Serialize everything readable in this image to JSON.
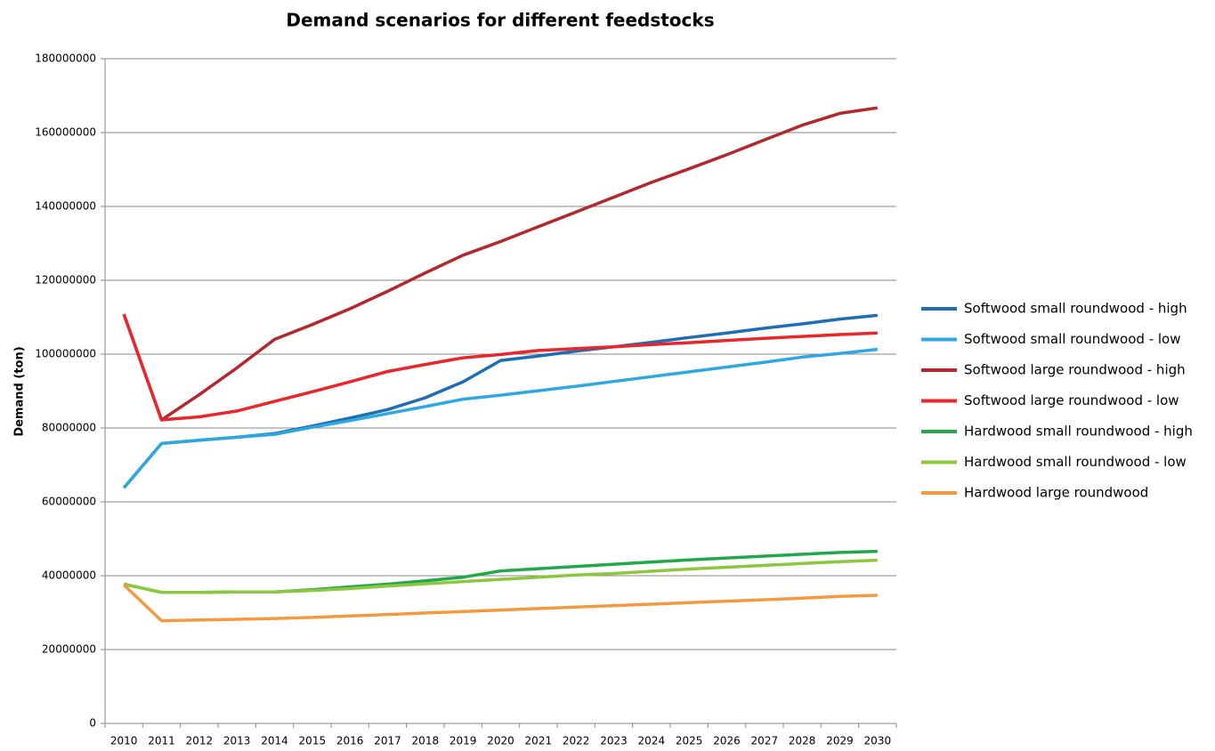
{
  "chart_data": {
    "type": "line",
    "title": "Demand scenarios for different feedstocks",
    "y_label": "Demand (ton)",
    "categories": [
      "2010",
      "2011",
      "2012",
      "2013",
      "2014",
      "2015",
      "2016",
      "2017",
      "2018",
      "2019",
      "2020",
      "2021",
      "2022",
      "2023",
      "2024",
      "2025",
      "2026",
      "2027",
      "2028",
      "2029",
      "2030"
    ],
    "ylim": [
      0,
      180000000
    ],
    "yticks": [
      0,
      20000000,
      40000000,
      60000000,
      80000000,
      100000000,
      120000000,
      140000000,
      160000000,
      180000000
    ],
    "grid": true,
    "legend": "right",
    "series": [
      {
        "name": "Softwood small roundwood - high",
        "color": "#1f6db4",
        "values": [
          63800000,
          75800000,
          76700000,
          77500000,
          78500000,
          80500000,
          82700000,
          85000000,
          88200000,
          92500000,
          98300000,
          99500000,
          100800000,
          102000000,
          103200000,
          104500000,
          105700000,
          107000000,
          108200000,
          109500000,
          110500000
        ]
      },
      {
        "name": "Softwood small roundwood - low",
        "color": "#2fa8e0",
        "values": [
          63800000,
          75800000,
          76700000,
          77500000,
          78300000,
          80200000,
          82000000,
          83900000,
          85800000,
          87800000,
          88900000,
          90100000,
          91300000,
          92600000,
          93900000,
          95200000,
          96500000,
          97800000,
          99200000,
          100200000,
          101300000
        ]
      },
      {
        "name": "Softwood large roundwood - high",
        "color": "#b3282d",
        "values": [
          110800000,
          82200000,
          89000000,
          96300000,
          104000000,
          108000000,
          112300000,
          117000000,
          122000000,
          126800000,
          130500000,
          134500000,
          138500000,
          142500000,
          146500000,
          150200000,
          154000000,
          158000000,
          162000000,
          165200000,
          166700000
        ]
      },
      {
        "name": "Softwood large roundwood - low",
        "color": "#e8262c",
        "values": [
          110800000,
          82200000,
          83000000,
          84600000,
          87200000,
          89800000,
          92500000,
          95300000,
          97200000,
          99000000,
          99900000,
          101000000,
          101500000,
          102000000,
          102600000,
          103100000,
          103700000,
          104300000,
          104800000,
          105300000,
          105700000
        ]
      },
      {
        "name": "Hardwood small roundwood - high",
        "color": "#22a84a",
        "values": [
          37700000,
          35500000,
          35500000,
          35600000,
          35600000,
          36200000,
          37000000,
          37700000,
          38600000,
          39600000,
          41300000,
          41900000,
          42500000,
          43100000,
          43700000,
          44300000,
          44800000,
          45300000,
          45800000,
          46300000,
          46600000
        ]
      },
      {
        "name": "Hardwood small roundwood - low",
        "color": "#8dc63f",
        "values": [
          37700000,
          35500000,
          35500000,
          35600000,
          35600000,
          36000000,
          36500000,
          37200000,
          37800000,
          38400000,
          39000000,
          39600000,
          40200000,
          40600000,
          41200000,
          41800000,
          42300000,
          42800000,
          43300000,
          43800000,
          44200000
        ]
      },
      {
        "name": "Hardwood large roundwood",
        "color": "#f39a3f",
        "values": [
          37500000,
          27800000,
          28000000,
          28200000,
          28400000,
          28700000,
          29100000,
          29500000,
          29900000,
          30300000,
          30700000,
          31100000,
          31500000,
          31900000,
          32300000,
          32700000,
          33100000,
          33500000,
          33900000,
          34400000,
          34700000
        ]
      }
    ]
  }
}
